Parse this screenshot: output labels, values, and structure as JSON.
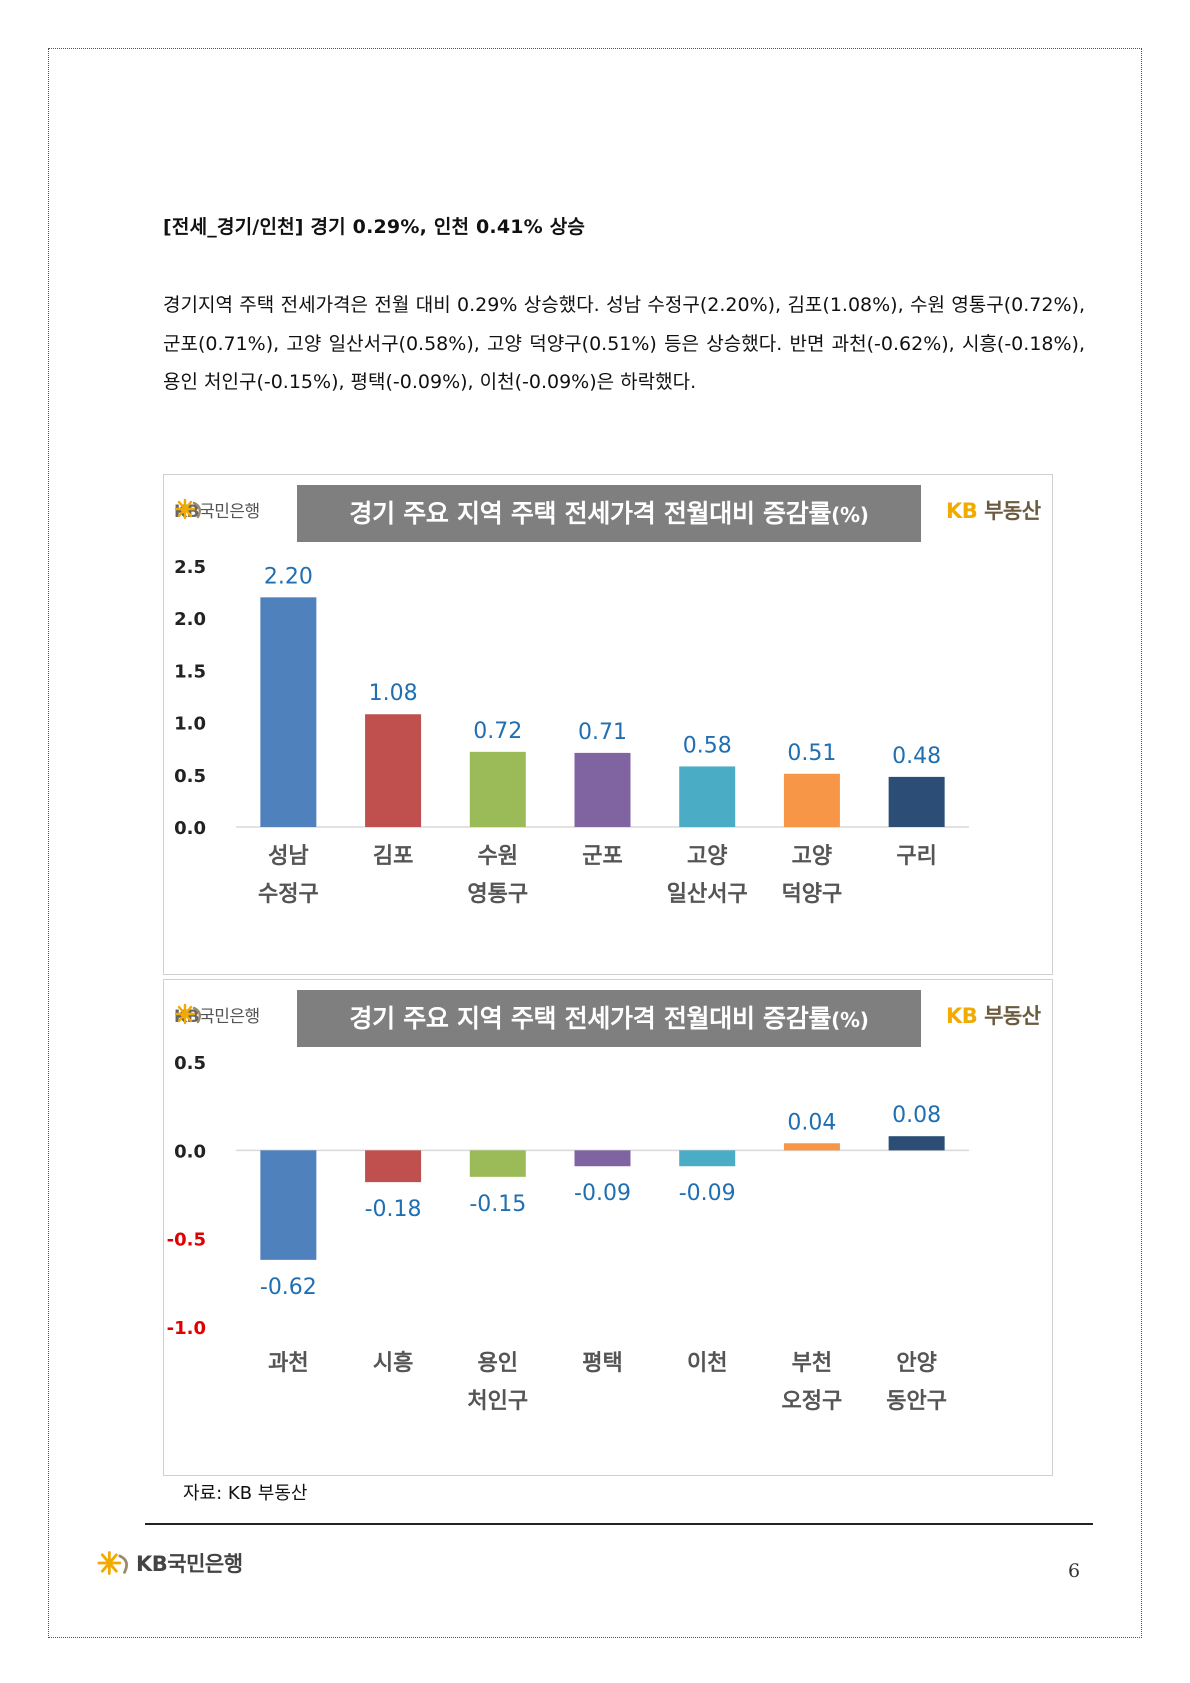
{
  "heading": "[전세_경기/인천] 경기 0.29%, 인천 0.41% 상승",
  "paragraph": "경기지역 주택 전세가격은 전월 대비 0.29% 상승했다. 성남 수정구(2.20%), 김포(1.08%), 수원 영통구(0.72%), 군포(0.71%), 고양 일산서구(0.58%), 고양 덕양구(0.51%) 등은 상승했다. 반면 과천(-0.62%), 시흥(-0.18%), 용인 처인구(-0.15%), 평택(-0.09%), 이천(-0.09%)은 하락했다.",
  "brand": {
    "bank_kb": "KB",
    "bank_name": "국민은행",
    "land_kb": "KB",
    "land_name": "부동산",
    "colors": {
      "star": "#f2a900",
      "gray_title_bg": "#7f7f7f",
      "label_blue": "#1f6fb2",
      "neg_tick_red": "#e00000"
    }
  },
  "chart_data": [
    {
      "type": "bar",
      "title": "경기 주요 지역 주택 전세가격 전월대비 증감률",
      "title_unit": "(%)",
      "categories": [
        [
          "성남",
          "수정구"
        ],
        [
          "김포"
        ],
        [
          "수원",
          "영통구"
        ],
        [
          "군포"
        ],
        [
          "고양",
          "일산서구"
        ],
        [
          "고양",
          "덕양구"
        ],
        [
          "구리"
        ]
      ],
      "values": [
        2.2,
        1.08,
        0.72,
        0.71,
        0.58,
        0.51,
        0.48
      ],
      "data_labels": [
        "2.20",
        "1.08",
        "0.72",
        "0.71",
        "0.58",
        "0.51",
        "0.48"
      ],
      "colors": [
        "#4f81bd",
        "#c0504d",
        "#9bbb59",
        "#8064a2",
        "#4bacc6",
        "#f79646",
        "#2c4d75"
      ],
      "yticks": [
        "0.0",
        "0.5",
        "1.0",
        "1.5",
        "2.0",
        "2.5"
      ],
      "ylim": [
        0,
        2.5
      ],
      "grid": false
    },
    {
      "type": "bar",
      "title": "경기 주요 지역 주택 전세가격 전월대비 증감률",
      "title_unit": "(%)",
      "categories": [
        [
          "과천"
        ],
        [
          "시흥"
        ],
        [
          "용인",
          "처인구"
        ],
        [
          "평택"
        ],
        [
          "이천"
        ],
        [
          "부천",
          "오정구"
        ],
        [
          "안양",
          "동안구"
        ]
      ],
      "values": [
        -0.62,
        -0.18,
        -0.15,
        -0.09,
        -0.09,
        0.04,
        0.08
      ],
      "data_labels": [
        "-0.62",
        "-0.18",
        "-0.15",
        "-0.09",
        "-0.09",
        "0.04",
        "0.08"
      ],
      "colors": [
        "#4f81bd",
        "#c0504d",
        "#9bbb59",
        "#8064a2",
        "#4bacc6",
        "#f79646",
        "#2c4d75"
      ],
      "yticks": [
        "-1.0",
        "-0.5",
        "0.0",
        "0.5"
      ],
      "ylim": [
        -1.0,
        0.5
      ],
      "grid": false
    }
  ],
  "source": "자료: KB 부동산",
  "page_number": "6"
}
